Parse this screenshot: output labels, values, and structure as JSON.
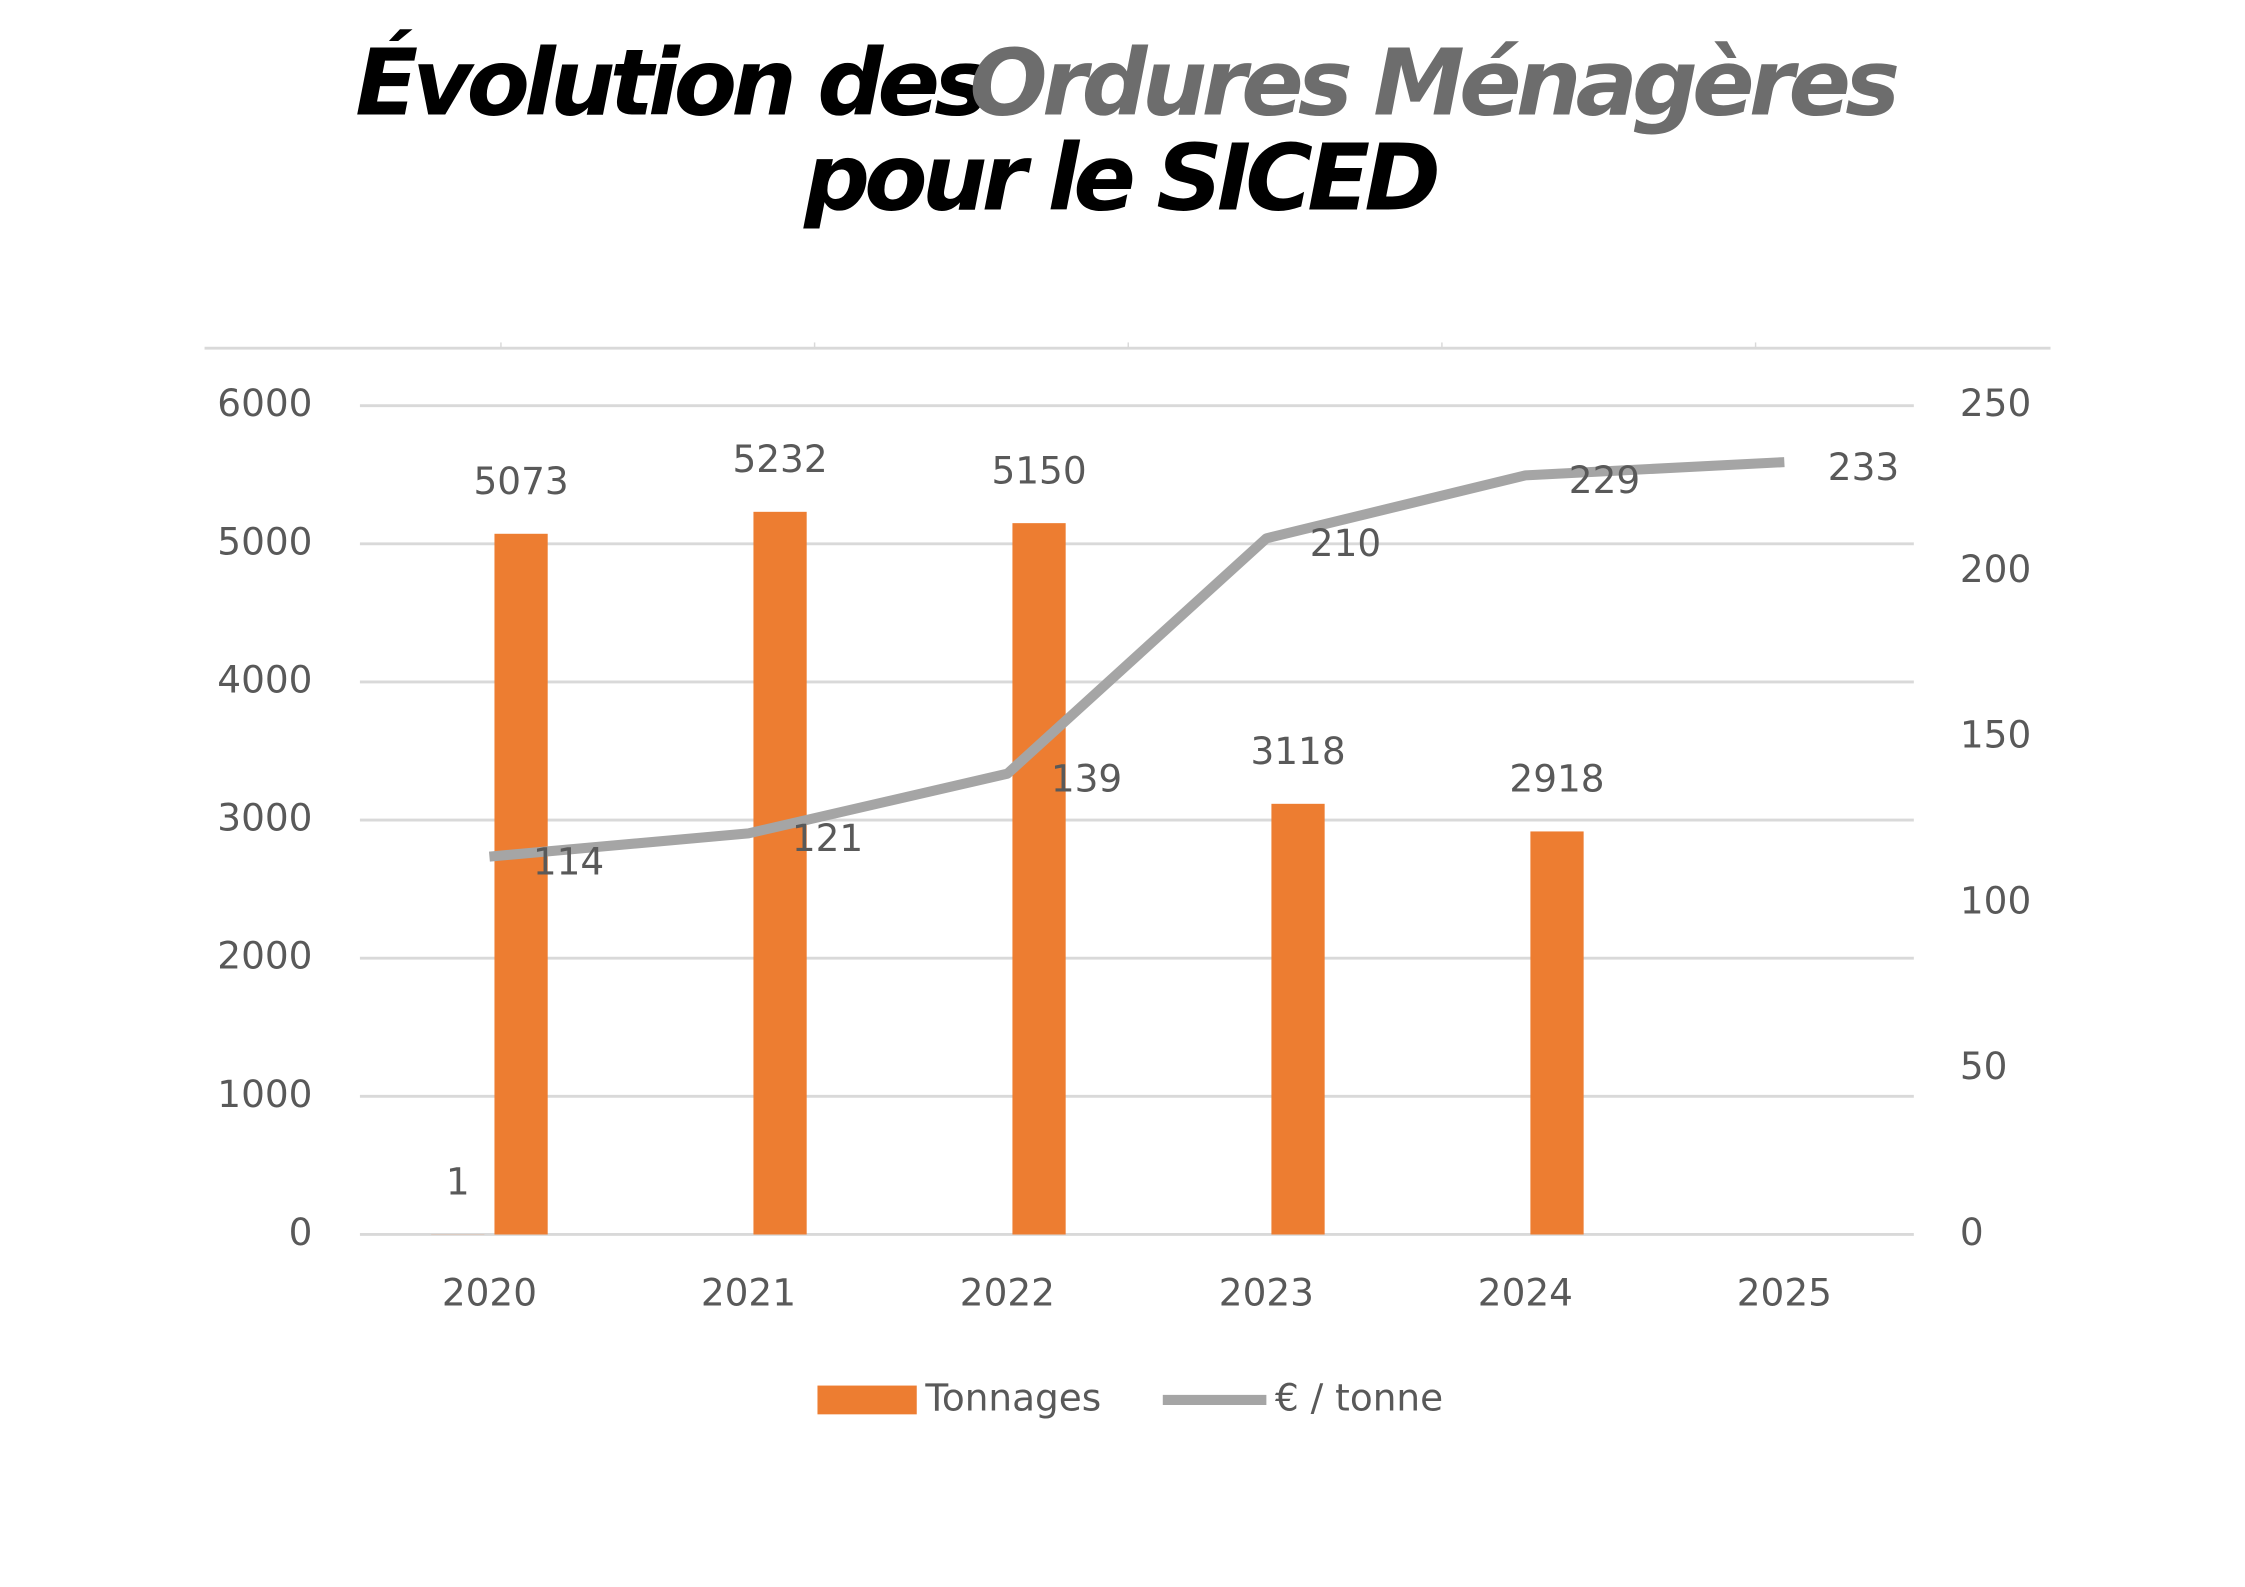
{
  "chart_data": {
    "type": "bar_line",
    "title": {
      "start": "Évolution des",
      "highlight": "Ordures Ménagères",
      "end": "pour le SICED"
    },
    "categories": [
      "2020",
      "2021",
      "2022",
      "2023",
      "2024",
      "2025"
    ],
    "series": [
      {
        "color": "#ed7d31",
        "values": [
          1,
          null,
          null,
          null,
          null,
          null
        ]
      },
      {
        "name": "Tonnages",
        "type": "bar",
        "color": "#ed7d31",
        "values": [
          5073,
          5232,
          5150,
          3118,
          2918,
          null
        ]
      },
      {
        "name": "€ / tonne",
        "type": "line",
        "color": "#a5a5a5",
        "axis": "y2",
        "values": [
          114,
          121,
          139,
          210,
          229,
          233
        ]
      }
    ],
    "ylim": [
      0,
      6000
    ],
    "yticks": [
      0,
      1000,
      2000,
      3000,
      4000,
      5000,
      6000
    ],
    "y2lim": [
      0,
      250
    ],
    "y2ticks": [
      0,
      50,
      100,
      150,
      200,
      250
    ],
    "grid": true,
    "legend": "bottom"
  }
}
